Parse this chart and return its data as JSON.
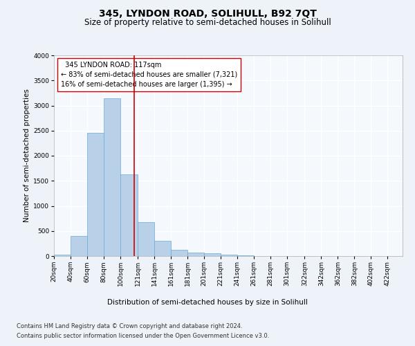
{
  "title": "345, LYNDON ROAD, SOLIHULL, B92 7QT",
  "subtitle": "Size of property relative to semi-detached houses in Solihull",
  "xlabel": "Distribution of semi-detached houses by size in Solihull",
  "ylabel": "Number of semi-detached properties",
  "footnote1": "Contains HM Land Registry data © Crown copyright and database right 2024.",
  "footnote2": "Contains public sector information licensed under the Open Government Licence v3.0.",
  "annotation_title": "345 LYNDON ROAD: 117sqm",
  "annotation_line1": "← 83% of semi-detached houses are smaller (7,321)",
  "annotation_line2": "16% of semi-detached houses are larger (1,395) →",
  "property_size": 117,
  "bin_edges": [
    20,
    40,
    60,
    80,
    100,
    121,
    141,
    161,
    181,
    201,
    221,
    241,
    261,
    281,
    301,
    322,
    342,
    362,
    382,
    402,
    422
  ],
  "bin_labels": [
    "20sqm",
    "40sqm",
    "60sqm",
    "80sqm",
    "100sqm",
    "121sqm",
    "141sqm",
    "161sqm",
    "181sqm",
    "201sqm",
    "221sqm",
    "241sqm",
    "261sqm",
    "281sqm",
    "301sqm",
    "322sqm",
    "342sqm",
    "362sqm",
    "382sqm",
    "402sqm",
    "422sqm"
  ],
  "bar_heights": [
    30,
    400,
    2450,
    3150,
    1630,
    680,
    300,
    130,
    65,
    50,
    30,
    10,
    5,
    2,
    2,
    1,
    0,
    0,
    0,
    0
  ],
  "bar_color": "#b8d0e8",
  "bar_edge_color": "#6aaad4",
  "vline_color": "#cc0000",
  "vline_x": 117,
  "ylim": [
    0,
    4000
  ],
  "yticks": [
    0,
    500,
    1000,
    1500,
    2000,
    2500,
    3000,
    3500,
    4000
  ],
  "bg_color": "#eef2f9",
  "axes_bg_color": "#f5f8fd",
  "grid_color": "#ffffff",
  "title_fontsize": 10,
  "subtitle_fontsize": 8.5,
  "axis_label_fontsize": 7.5,
  "tick_fontsize": 6.5,
  "annotation_fontsize": 7,
  "footnote_fontsize": 6
}
